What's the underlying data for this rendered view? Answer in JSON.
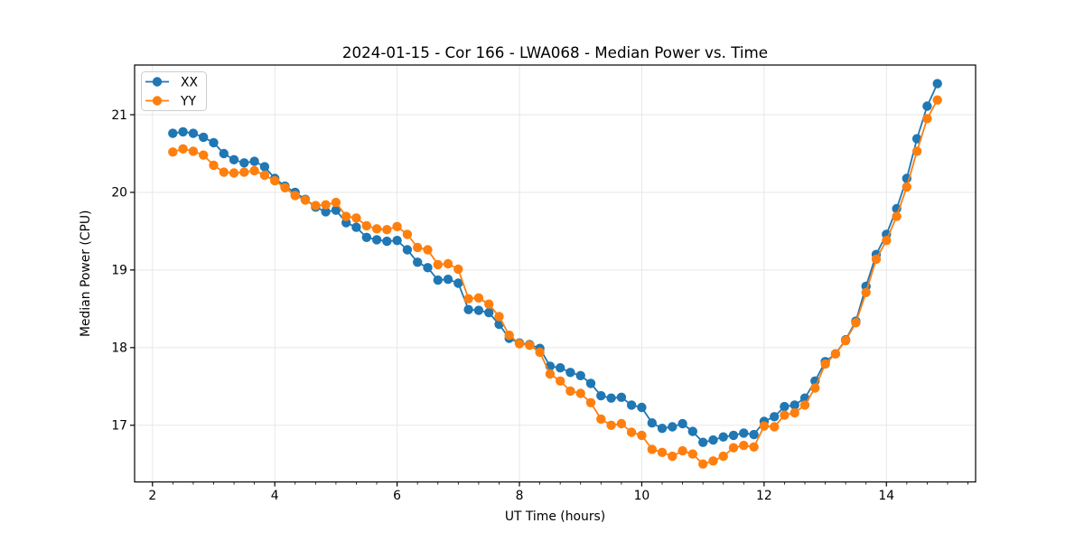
{
  "chart_data": {
    "type": "line",
    "title": "2024-01-15 - Cor 166 - LWA068 - Median Power vs. Time",
    "xlabel": "UT Time (hours)",
    "ylabel": "Median Power (CPU)",
    "xlim": [
      1.708,
      15.458
    ],
    "ylim": [
      16.27,
      21.64
    ],
    "xticks": [
      2,
      4,
      6,
      8,
      10,
      12,
      14
    ],
    "yticks": [
      17,
      18,
      19,
      20,
      21
    ],
    "x_minor_step": 0.33333,
    "grid": true,
    "grid_color": "#e7e7e7",
    "legend_position": "upper left",
    "x": [
      2.333,
      2.5,
      2.667,
      2.833,
      3.0,
      3.167,
      3.333,
      3.5,
      3.667,
      3.833,
      4.0,
      4.167,
      4.333,
      4.5,
      4.667,
      4.833,
      5.0,
      5.167,
      5.333,
      5.5,
      5.667,
      5.833,
      6.0,
      6.167,
      6.333,
      6.5,
      6.667,
      6.833,
      7.0,
      7.167,
      7.333,
      7.5,
      7.667,
      7.833,
      8.0,
      8.167,
      8.333,
      8.5,
      8.667,
      8.833,
      9.0,
      9.167,
      9.333,
      9.5,
      9.667,
      9.833,
      10.0,
      10.167,
      10.333,
      10.5,
      10.667,
      10.833,
      11.0,
      11.167,
      11.333,
      11.5,
      11.667,
      11.833,
      12.0,
      12.167,
      12.333,
      12.5,
      12.667,
      12.833,
      13.0,
      13.167,
      13.333,
      13.5,
      13.667,
      13.833,
      14.0,
      14.167,
      14.333,
      14.5,
      14.667,
      14.833
    ],
    "series": [
      {
        "name": "XX",
        "color": "#1f77b4",
        "values": [
          20.76,
          20.78,
          20.76,
          20.71,
          20.64,
          20.5,
          20.42,
          20.38,
          20.4,
          20.33,
          20.18,
          20.08,
          20.0,
          19.91,
          19.81,
          19.75,
          19.77,
          19.61,
          19.55,
          19.42,
          19.39,
          19.37,
          19.38,
          19.26,
          19.1,
          19.03,
          18.87,
          18.88,
          18.83,
          18.49,
          18.48,
          18.45,
          18.3,
          18.12,
          18.06,
          18.04,
          17.99,
          17.76,
          17.74,
          17.68,
          17.64,
          17.54,
          17.38,
          17.35,
          17.36,
          17.26,
          17.23,
          17.03,
          16.96,
          16.98,
          17.02,
          16.92,
          16.78,
          16.81,
          16.85,
          16.87,
          16.9,
          16.88,
          17.05,
          17.11,
          17.24,
          17.26,
          17.35,
          17.57,
          17.82,
          17.92,
          18.1,
          18.34,
          18.79,
          19.2,
          19.46,
          19.79,
          20.18,
          20.69,
          21.11,
          21.4
        ]
      },
      {
        "name": "YY",
        "color": "#ff7f0e",
        "values": [
          20.52,
          20.56,
          20.53,
          20.48,
          20.35,
          20.26,
          20.25,
          20.26,
          20.28,
          20.22,
          20.15,
          20.06,
          19.96,
          19.9,
          19.83,
          19.84,
          19.87,
          19.69,
          19.67,
          19.57,
          19.53,
          19.52,
          19.56,
          19.46,
          19.29,
          19.26,
          19.07,
          19.08,
          19.01,
          18.63,
          18.64,
          18.56,
          18.4,
          18.16,
          18.05,
          18.03,
          17.94,
          17.66,
          17.57,
          17.44,
          17.41,
          17.29,
          17.08,
          17.0,
          17.02,
          16.91,
          16.87,
          16.69,
          16.65,
          16.6,
          16.67,
          16.63,
          16.5,
          16.54,
          16.6,
          16.71,
          16.74,
          16.72,
          16.99,
          16.98,
          17.13,
          17.16,
          17.26,
          17.48,
          17.79,
          17.92,
          18.09,
          18.32,
          18.71,
          19.14,
          19.38,
          19.69,
          20.07,
          20.53,
          20.95,
          21.19
        ]
      }
    ]
  }
}
